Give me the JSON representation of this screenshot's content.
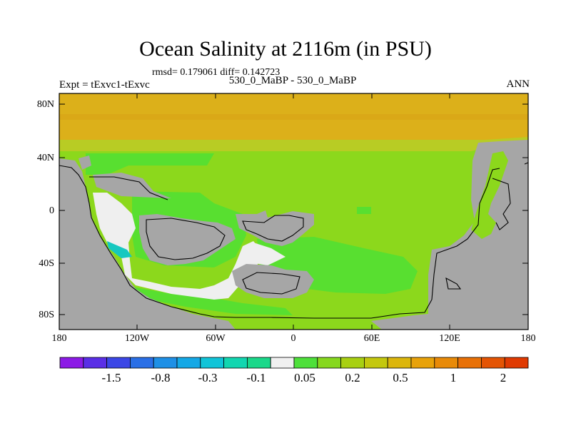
{
  "title": "Ocean Salinity at 2116m (in PSU)",
  "stats": "rmsd= 0.179061 diff= 0.142723",
  "experiment": "Expt = tExvc1-tExvc",
  "subtitle": "530_0_MaBP - 530_0_MaBP",
  "season": "ANN",
  "y_ticks": [
    "80N",
    "40N",
    "0",
    "40S",
    "80S"
  ],
  "x_ticks": [
    "180",
    "120W",
    "60W",
    "0",
    "60E",
    "120E",
    "180"
  ],
  "colorbar": {
    "colors": [
      "#8c1ae6",
      "#5a2ee6",
      "#3b46e6",
      "#2a6fe6",
      "#1e90e6",
      "#14a8e6",
      "#10c4d8",
      "#12d6b0",
      "#1ad88a",
      "#f0f0f0",
      "#4ee03a",
      "#86d81e",
      "#a8d012",
      "#c4c80e",
      "#dcb60c",
      "#e8a20a",
      "#e88a08",
      "#e87006",
      "#e45404",
      "#e03a02"
    ],
    "labels": [
      "-1.5",
      "-0.8",
      "-0.3",
      "-0.1",
      "0.05",
      "0.2",
      "0.5",
      "1",
      "2"
    ]
  },
  "map_colors": {
    "land": "#a6a6a6",
    "north_band": "#dcb01a",
    "north_band_dark": "#d69a14",
    "band_transition": "#b8cc24",
    "ocean_main": "#8cd81c",
    "ocean_green": "#58df30",
    "ocean_light": "#efefef",
    "cyan": "#16c8c0"
  }
}
